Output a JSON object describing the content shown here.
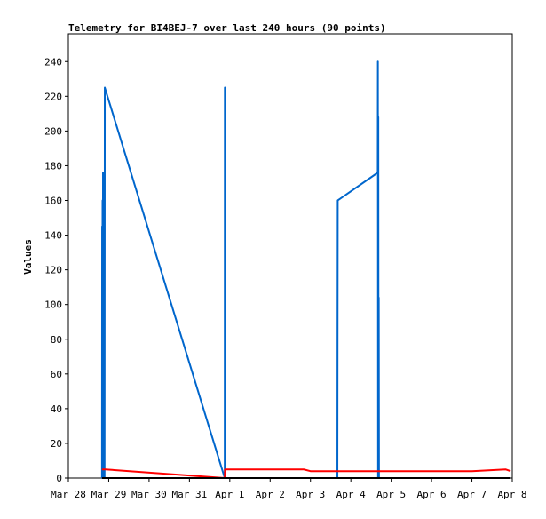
{
  "chart_data": {
    "type": "line",
    "title": "Telemetry for BI4BEJ-7 over last 240 hours (90 points)",
    "xlabel": "",
    "ylabel": "Values",
    "x_ticks": [
      "Mar 28",
      "Mar 29",
      "Mar 30",
      "Mar 31",
      "Apr 1",
      "Apr 2",
      "Apr 3",
      "Apr 4",
      "Apr 5",
      "Apr 6",
      "Apr 7",
      "Apr 8"
    ],
    "y_ticks": [
      0,
      20,
      40,
      60,
      80,
      100,
      120,
      140,
      160,
      180,
      200,
      220,
      240
    ],
    "xlim": [
      "2025-03-28T00:00",
      "2025-04-08T00:00"
    ],
    "ylim": [
      0,
      256
    ],
    "grid": false,
    "legend": "none",
    "series": [
      {
        "color": "#0066cc",
        "points": [
          [
            "2025-03-28T20:00",
            0
          ],
          [
            "2025-03-28T20:05",
            145
          ],
          [
            "2025-03-28T20:12",
            0
          ],
          [
            "2025-03-28T20:20",
            160
          ],
          [
            "2025-03-28T20:28",
            0
          ],
          [
            "2025-03-28T20:36",
            176
          ],
          [
            "2025-03-28T20:44",
            0
          ],
          [
            "2025-03-28T20:52",
            112
          ],
          [
            "2025-03-28T21:00",
            0
          ],
          [
            "2025-03-28T21:05",
            56
          ],
          [
            "2025-03-28T21:20",
            0
          ],
          [
            "2025-03-28T21:25",
            80
          ],
          [
            "2025-03-28T21:32",
            0
          ],
          [
            "2025-03-28T21:40",
            225
          ],
          [
            "2025-03-31T21:00",
            0
          ],
          [
            "2025-03-31T21:05",
            225
          ],
          [
            "2025-03-31T21:12",
            0
          ],
          [
            "2025-03-31T21:17",
            112
          ],
          [
            "2025-03-31T21:25",
            0
          ],
          [
            "2025-04-03T16:00",
            0
          ],
          [
            "2025-04-03T16:05",
            80
          ],
          [
            "2025-04-03T16:12",
            160
          ],
          [
            "2025-04-04T16:00",
            176
          ],
          [
            "2025-04-04T16:05",
            240
          ],
          [
            "2025-04-04T16:12",
            0
          ],
          [
            "2025-04-04T16:20",
            208
          ],
          [
            "2025-04-04T16:28",
            0
          ],
          [
            "2025-04-04T16:36",
            104
          ],
          [
            "2025-04-04T16:44",
            0
          ]
        ]
      },
      {
        "color": "#ff0000",
        "points": [
          [
            "2025-03-28T20:00",
            5
          ],
          [
            "2025-03-28T22:00",
            5
          ],
          [
            "2025-03-31T21:00",
            0
          ],
          [
            "2025-03-31T21:10",
            5
          ],
          [
            "2025-04-01T12:00",
            5
          ],
          [
            "2025-04-02T20:00",
            5
          ],
          [
            "2025-04-03T00:00",
            4
          ],
          [
            "2025-04-05T00:00",
            4
          ],
          [
            "2025-04-07T00:00",
            4
          ],
          [
            "2025-04-07T20:00",
            5
          ],
          [
            "2025-04-07T23:00",
            4
          ]
        ]
      },
      {
        "color": "#000000",
        "points": [
          [
            "2025-03-28T20:00",
            0
          ],
          [
            "2025-04-07T23:00",
            0
          ]
        ]
      }
    ]
  }
}
